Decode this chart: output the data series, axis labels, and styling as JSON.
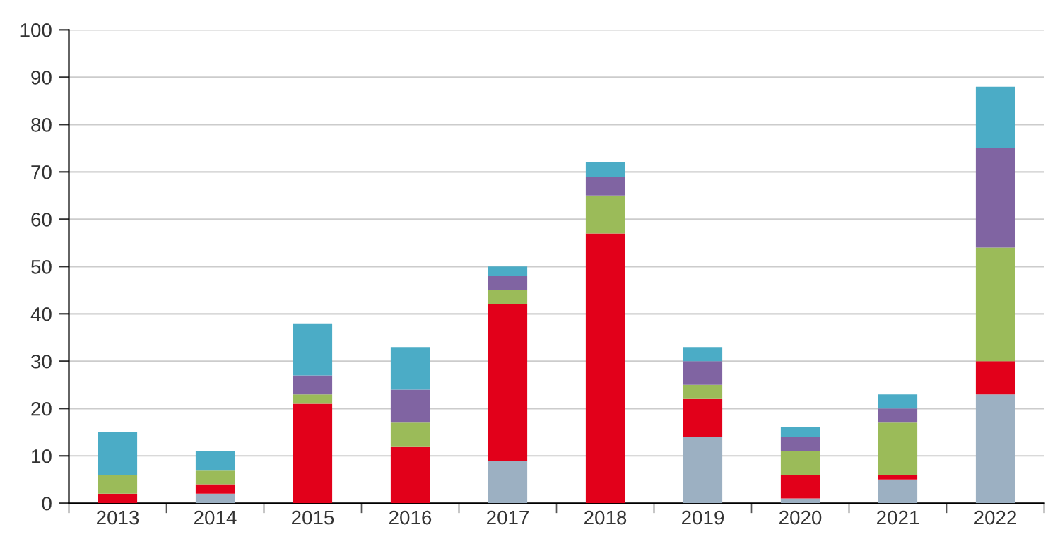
{
  "chart_data": {
    "type": "bar",
    "stacked": true,
    "categories": [
      "2013",
      "2014",
      "2015",
      "2016",
      "2017",
      "2018",
      "2019",
      "2020",
      "2021",
      "2022"
    ],
    "series": [
      {
        "color": "#9cb0c2",
        "values": [
          0,
          2,
          0,
          0,
          9,
          0,
          14,
          1,
          5,
          23
        ]
      },
      {
        "color": "#e2001a",
        "values": [
          2,
          2,
          21,
          12,
          33,
          57,
          8,
          5,
          1,
          7
        ]
      },
      {
        "color": "#9bbb59",
        "values": [
          4,
          3,
          2,
          5,
          3,
          8,
          3,
          5,
          11,
          24
        ]
      },
      {
        "color": "#8064a2",
        "values": [
          0,
          0,
          4,
          7,
          3,
          4,
          5,
          3,
          3,
          21
        ]
      },
      {
        "color": "#4bacc6",
        "values": [
          9,
          4,
          11,
          9,
          2,
          3,
          3,
          2,
          3,
          13
        ]
      }
    ],
    "ylim": [
      0,
      100
    ],
    "yticks": [
      0,
      10,
      20,
      30,
      40,
      50,
      60,
      70,
      80,
      90,
      100
    ],
    "grid": "y",
    "legend": false
  }
}
